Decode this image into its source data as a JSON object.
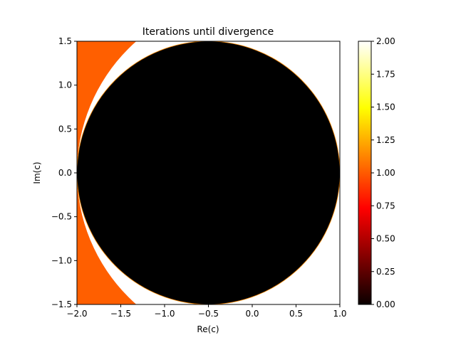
{
  "chart_data": {
    "type": "heatmap",
    "title": "Iterations until divergence",
    "xlabel": "Re(c)",
    "ylabel": "Im(c)",
    "xlim": [
      -2.0,
      1.0
    ],
    "ylim": [
      -1.5,
      1.5
    ],
    "xticks": [
      -2.0,
      -1.5,
      -1.0,
      -0.5,
      0.0,
      0.5,
      1.0
    ],
    "xtick_labels": [
      "−2.0",
      "−1.5",
      "−1.0",
      "−0.5",
      "0.0",
      "0.5",
      "1.0"
    ],
    "yticks": [
      -1.5,
      -1.0,
      -0.5,
      0.0,
      0.5,
      1.0,
      1.5
    ],
    "ytick_labels": [
      "−1.5",
      "−1.0",
      "−0.5",
      "0.0",
      "0.5",
      "1.0",
      "1.5"
    ],
    "colormap": "hot",
    "colorbar": {
      "min": 0.0,
      "max": 2.0,
      "ticks": [
        0.0,
        0.25,
        0.5,
        0.75,
        1.0,
        1.25,
        1.5,
        1.75,
        2.0
      ],
      "tick_labels": [
        "0.00",
        "0.25",
        "0.50",
        "0.75",
        "1.00",
        "1.25",
        "1.50",
        "1.75",
        "2.00"
      ],
      "position": "right"
    },
    "regions": [
      {
        "value": 0,
        "color": "#000000",
        "shape": "disk",
        "center": [
          -0.5,
          0.0
        ],
        "radius": 1.5
      },
      {
        "value": 1,
        "color": "#ff5f00",
        "shape": "exterior of disk",
        "center": [
          0.0,
          0.0
        ],
        "radius": 2.0
      },
      {
        "value": 2,
        "color": "#ffffff",
        "shape": "annulus between"
      }
    ],
    "grid": false
  }
}
